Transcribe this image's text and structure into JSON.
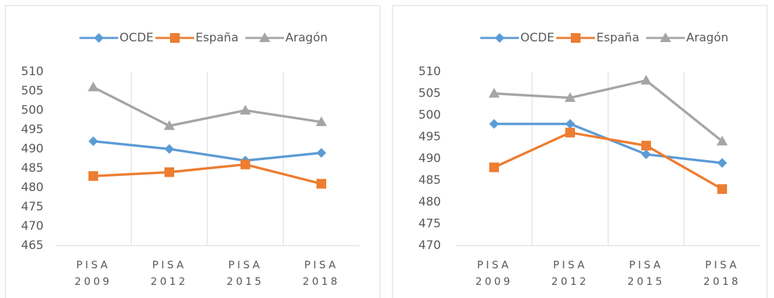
{
  "chart_data": [
    {
      "type": "line",
      "categories": [
        "PISA 2009",
        "PISA 2012",
        "PISA 2015",
        "PISA 2018"
      ],
      "series": [
        {
          "name": "OCDE",
          "color": "#5b9bd5",
          "marker": "diamond",
          "values": [
            492,
            490,
            487,
            489
          ]
        },
        {
          "name": "España",
          "color": "#ed7d31",
          "marker": "square",
          "values": [
            483,
            484,
            486,
            481
          ]
        },
        {
          "name": "Aragón",
          "color": "#a5a5a5",
          "marker": "triangle",
          "values": [
            506,
            496,
            500,
            497
          ]
        }
      ],
      "ylim": [
        465,
        510
      ],
      "yticks": [
        465,
        470,
        475,
        480,
        485,
        490,
        495,
        500,
        505,
        510
      ],
      "legend": "top"
    },
    {
      "type": "line",
      "categories": [
        "PISA 2009",
        "PISA 2012",
        "PISA 2015",
        "PISA 2018"
      ],
      "series": [
        {
          "name": "OCDE",
          "color": "#5b9bd5",
          "marker": "diamond",
          "values": [
            498,
            498,
            491,
            489
          ]
        },
        {
          "name": "España",
          "color": "#ed7d31",
          "marker": "square",
          "values": [
            488,
            496,
            493,
            483
          ]
        },
        {
          "name": "Aragón",
          "color": "#a5a5a5",
          "marker": "triangle",
          "values": [
            505,
            504,
            508,
            494
          ]
        }
      ],
      "ylim": [
        470,
        510
      ],
      "yticks": [
        470,
        475,
        480,
        485,
        490,
        495,
        500,
        505,
        510
      ],
      "legend": "top"
    }
  ]
}
